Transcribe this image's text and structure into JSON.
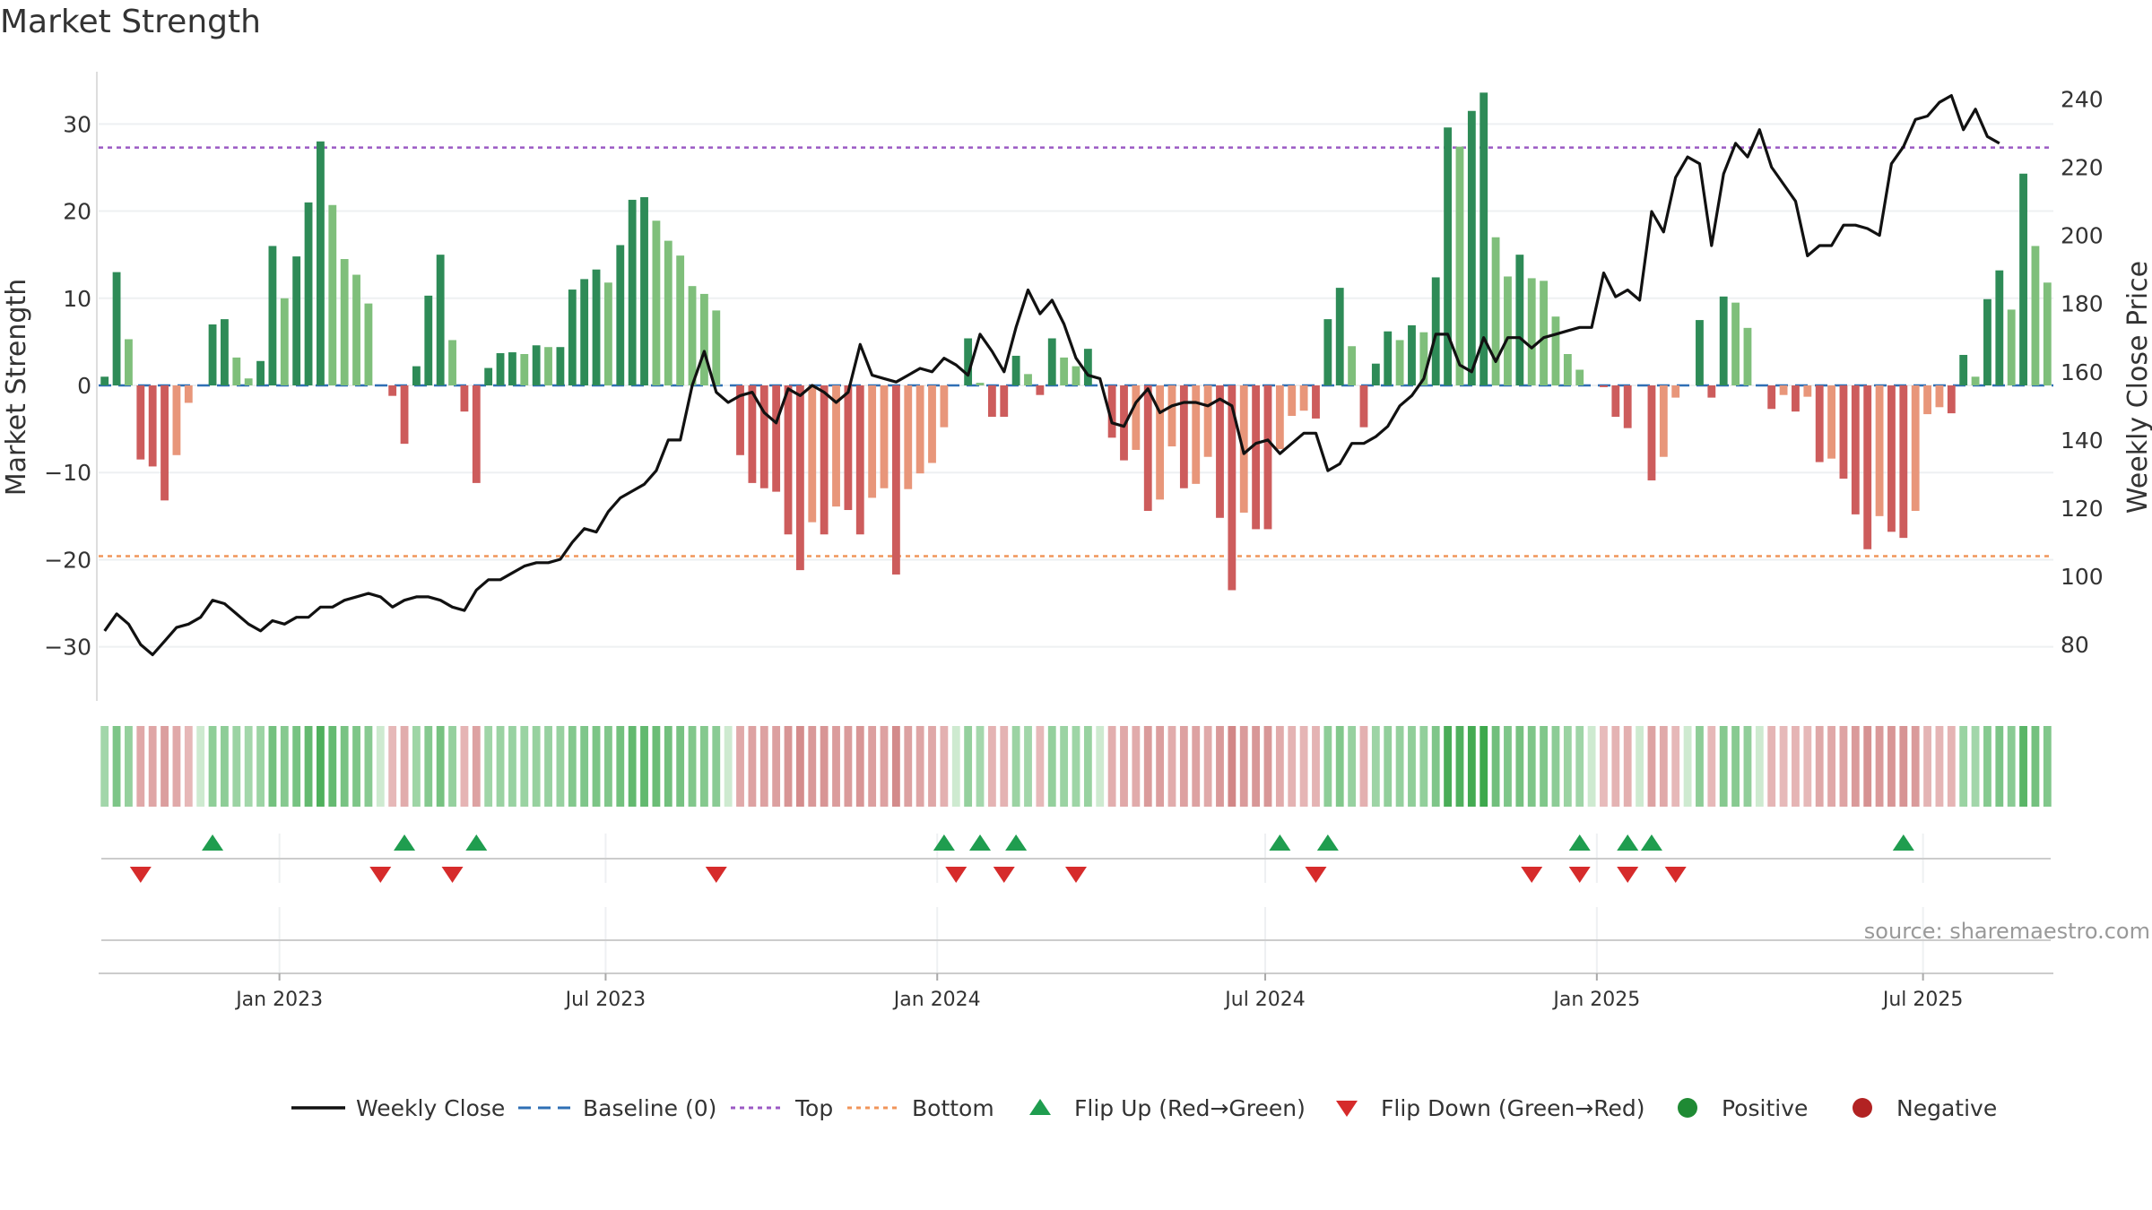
{
  "title": "Market Strength",
  "source_note": "source: sharemaestro.com",
  "legend": [
    {
      "key": "weekly_close",
      "label": "Weekly Close",
      "type": "line",
      "color": "#111111"
    },
    {
      "key": "baseline",
      "label": "Baseline (0)",
      "type": "dash",
      "color": "#2f6fb5"
    },
    {
      "key": "top",
      "label": "Top",
      "type": "dot",
      "color": "#9b59c4"
    },
    {
      "key": "bottom",
      "label": "Bottom",
      "type": "dot",
      "color": "#f0955a"
    },
    {
      "key": "flip_up",
      "label": "Flip Up (Red→Green)",
      "type": "tri-up",
      "color": "#1f9d4f"
    },
    {
      "key": "flip_down",
      "label": "Flip Down (Green→Red)",
      "type": "tri-down",
      "color": "#d62b2b"
    },
    {
      "key": "positive",
      "label": "Positive",
      "type": "circle",
      "color": "#1f8a34"
    },
    {
      "key": "negative",
      "label": "Negative",
      "type": "circle",
      "color": "#b22222"
    }
  ],
  "chart_data": {
    "type": "bar",
    "title": "Market Strength",
    "ylabel": "Market Strength",
    "y2label": "Weekly Close Price",
    "ylim": [
      -36,
      36
    ],
    "y2lim": [
      64,
      248
    ],
    "yticks": [
      -30,
      -20,
      -10,
      0,
      10,
      20,
      30
    ],
    "y2ticks": [
      80,
      100,
      120,
      140,
      160,
      180,
      200,
      220,
      240
    ],
    "top_level": 27.3,
    "bottom_level": -19.6,
    "x_start_date": "2022-09-26",
    "x_end_date": "2025-09-08",
    "x_tick_dates": [
      "2023-01-01",
      "2023-07-01",
      "2024-01-01",
      "2024-07-01",
      "2025-01-01",
      "2025-07-01"
    ],
    "x_tick_labels": [
      "Jan 2023",
      "Jul 2023",
      "Jan 2024",
      "Jul 2024",
      "Jan 2025",
      "Jul 2025"
    ],
    "strength": [
      1,
      13,
      5.3,
      -8.5,
      -9.3,
      -13.2,
      -8,
      -2,
      0,
      7,
      7.6,
      3.2,
      0.8,
      2.8,
      16,
      10,
      14.8,
      21,
      28,
      20.7,
      14.5,
      12.7,
      9.4,
      0,
      -1.2,
      -6.7,
      2.2,
      10.3,
      15,
      5.2,
      -3,
      -11.2,
      2,
      3.7,
      3.8,
      3.6,
      4.6,
      4.4,
      4.4,
      11,
      12.2,
      13.3,
      11.8,
      16.1,
      21.3,
      21.6,
      18.9,
      16.6,
      14.9,
      11.4,
      10.5,
      8.6,
      0,
      -8,
      -11.2,
      -11.8,
      -12.2,
      -17.1,
      -21.2,
      -15.7,
      -17.1,
      -13.9,
      -14.3,
      -17.1,
      -12.9,
      -11.8,
      -21.7,
      -11.9,
      -10.1,
      -8.9,
      -4.8,
      0,
      5.4,
      0.3,
      -3.6,
      -3.6,
      3.4,
      1.3,
      -1.1,
      5.4,
      3.2,
      2.2,
      4.2,
      0,
      -6,
      -8.6,
      -7.4,
      -14.4,
      -13.1,
      -7,
      -11.8,
      -11.3,
      -8.2,
      -15.2,
      -23.5,
      -14.6,
      -16.5,
      -16.5,
      -7.3,
      -3.5,
      -2.9,
      -3.8,
      7.6,
      11.2,
      4.5,
      -4.8,
      2.5,
      6.2,
      5.2,
      6.9,
      6.1,
      12.4,
      29.6,
      27.4,
      31.5,
      33.6,
      17,
      12.5,
      15,
      12.3,
      12,
      7.9,
      3.6,
      1.8,
      0,
      -0.2,
      -3.6,
      -4.9,
      0,
      -10.9,
      -8.2,
      -1.4,
      0,
      7.5,
      -1.4,
      10.2,
      9.5,
      6.6,
      0,
      -2.7,
      -1.1,
      -3,
      -1.3,
      -8.8,
      -8.4,
      -10.7,
      -14.8,
      -18.8,
      -15,
      -16.8,
      -17.5,
      -14.4,
      -3.3,
      -2.5,
      -3.2,
      3.5,
      1,
      9.9,
      13.2,
      8.7,
      24.3,
      16,
      11.8
    ],
    "weekly_close": [
      84,
      89,
      86,
      80,
      77,
      81,
      85,
      86,
      88,
      93,
      92,
      89,
      86,
      84,
      87,
      86,
      88,
      88,
      91,
      91,
      93,
      94,
      95,
      94,
      91,
      93,
      94,
      94,
      93,
      91,
      90,
      96,
      99,
      99,
      101,
      103,
      104,
      104,
      105,
      110,
      114,
      113,
      119,
      123,
      125,
      127,
      131,
      140,
      140,
      156,
      166,
      154,
      151,
      153,
      154,
      148,
      145,
      155,
      153,
      156,
      154,
      151,
      154,
      168,
      159,
      158,
      157,
      159,
      161,
      160,
      164,
      162,
      159,
      171,
      166,
      160,
      173,
      184,
      177,
      181,
      174,
      164,
      159,
      158,
      145,
      144,
      151,
      155,
      148,
      150,
      151,
      151,
      150,
      152,
      150,
      136,
      139,
      140,
      136,
      139,
      142,
      142,
      131,
      133,
      139,
      139,
      141,
      144,
      150,
      153,
      158,
      171,
      171,
      162,
      160,
      170,
      163,
      170,
      170,
      167,
      170,
      171,
      172,
      173,
      173,
      189,
      182,
      184,
      181,
      207,
      201,
      217,
      223,
      221,
      197,
      218,
      227,
      223,
      231,
      220,
      215,
      210,
      194,
      197,
      197,
      203,
      203,
      202,
      200,
      221,
      226,
      234,
      235,
      239,
      241,
      231,
      237,
      229,
      227
    ],
    "flip_up_idx": [
      9,
      25,
      31,
      70,
      73,
      76,
      98,
      102,
      123,
      127,
      129,
      150
    ],
    "flip_down_idx": [
      3,
      23,
      29,
      51,
      71,
      75,
      81,
      101,
      119,
      123,
      127,
      131
    ]
  }
}
